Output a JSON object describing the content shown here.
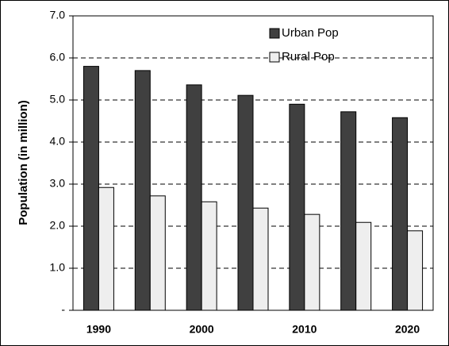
{
  "chart_data": {
    "type": "bar",
    "y_label": "Population (in million)",
    "categories": [
      "1990",
      null,
      "2000",
      null,
      "2010",
      null,
      "2020"
    ],
    "series": [
      {
        "name": "Urban Pop",
        "color": "#404040",
        "values": [
          5.8,
          5.7,
          5.36,
          5.11,
          4.9,
          4.72,
          4.58
        ]
      },
      {
        "name": "Rural Pop",
        "color": "#eeeeee",
        "values": [
          2.92,
          2.72,
          2.58,
          2.43,
          2.28,
          2.09,
          1.89
        ]
      }
    ],
    "ylim": [
      0,
      7
    ],
    "yticks": [
      {
        "value": 0,
        "label": "-"
      },
      {
        "value": 1,
        "label": "1.0"
      },
      {
        "value": 2,
        "label": "2.0"
      },
      {
        "value": 3,
        "label": "3.0"
      },
      {
        "value": 4,
        "label": "4.0"
      },
      {
        "value": 5,
        "label": "5.0"
      },
      {
        "value": 6,
        "label": "6.0"
      },
      {
        "value": 7,
        "label": "7.0"
      }
    ],
    "grid": true,
    "legend": "upper right"
  }
}
